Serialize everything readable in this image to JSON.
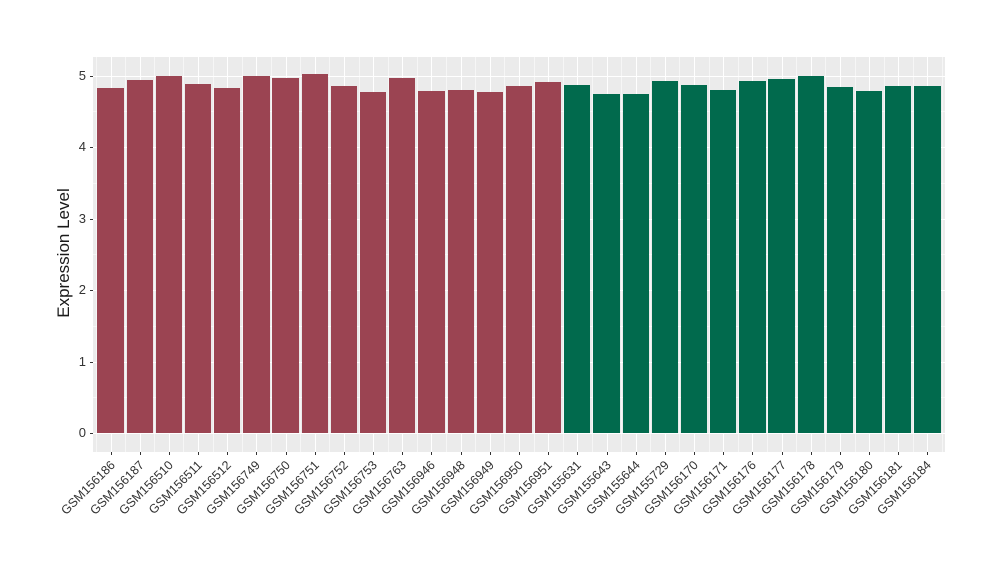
{
  "chart_data": {
    "type": "bar",
    "title": "",
    "xlabel": "",
    "ylabel": "Expression Level",
    "ylim": [
      0,
      5.27
    ],
    "yticks": [
      0,
      1,
      2,
      3,
      4,
      5
    ],
    "legend_position": "none",
    "grid": "white major and minor gridlines on grey panel",
    "categories": [
      "GSM156186",
      "GSM156187",
      "GSM156510",
      "GSM156511",
      "GSM156512",
      "GSM156749",
      "GSM156750",
      "GSM156751",
      "GSM156752",
      "GSM156753",
      "GSM156763",
      "GSM156946",
      "GSM156948",
      "GSM156949",
      "GSM156950",
      "GSM156951",
      "GSM155631",
      "GSM155643",
      "GSM155644",
      "GSM155729",
      "GSM156170",
      "GSM156171",
      "GSM156176",
      "GSM156177",
      "GSM156178",
      "GSM156179",
      "GSM156180",
      "GSM156181",
      "GSM156184"
    ],
    "values": [
      4.82,
      4.94,
      5.0,
      4.88,
      4.83,
      4.99,
      4.97,
      5.02,
      4.86,
      4.77,
      4.96,
      4.79,
      4.8,
      4.77,
      4.85,
      4.91,
      4.87,
      4.74,
      4.74,
      4.92,
      4.87,
      4.8,
      4.92,
      4.95,
      4.99,
      4.84,
      4.78,
      4.85,
      4.86
    ],
    "groups": [
      "A",
      "A",
      "A",
      "A",
      "A",
      "A",
      "A",
      "A",
      "A",
      "A",
      "A",
      "A",
      "A",
      "A",
      "A",
      "A",
      "B",
      "B",
      "B",
      "B",
      "B",
      "B",
      "B",
      "B",
      "B",
      "B",
      "B",
      "B",
      "B"
    ],
    "group_colors": {
      "A": "#9B4452",
      "B": "#016A4D"
    }
  },
  "style": {
    "panel_bg": "#EBEBEB",
    "grid_color": "#FFFFFF",
    "text_color": "#333333",
    "tick_color": "#333333"
  }
}
